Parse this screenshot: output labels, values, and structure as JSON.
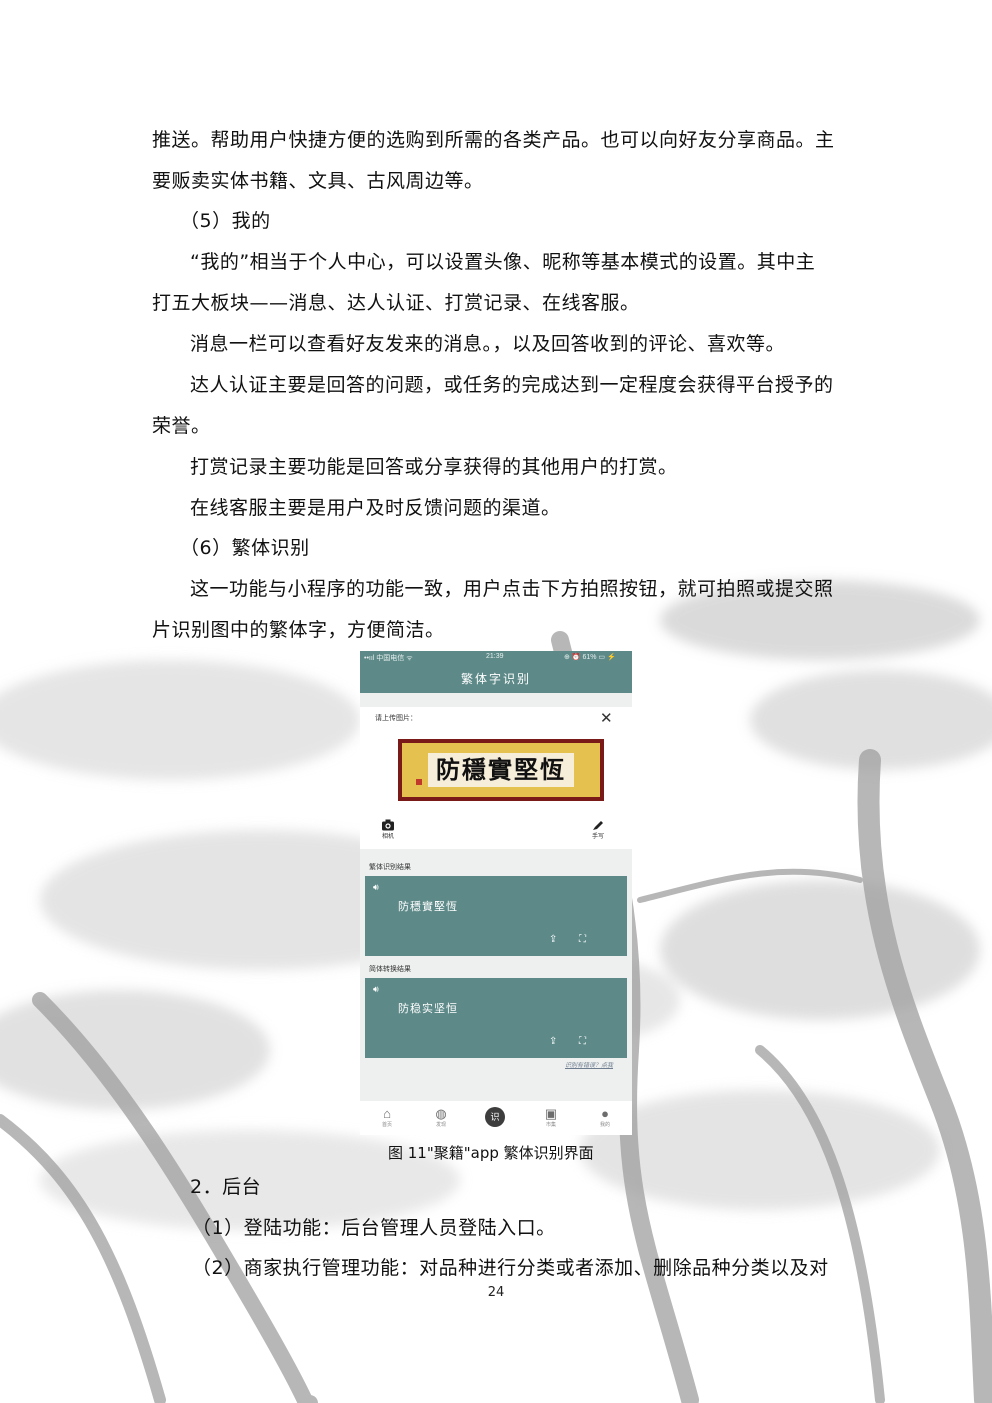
{
  "paragraphs": [
    "推送。帮助用户快捷方便的选购到所需的各类产品。也可以向好友分享商品。主",
    "要贩卖实体书籍、文具、古风周边等。",
    "（5）我的",
    "“我的”相当于个人中心，可以设置头像、昵称等基本模式的设置。其中主",
    "打五大板块——消息、达人认证、打赏记录、在线客服。",
    "消息一栏可以查看好友发来的消息。，以及回答收到的评论、喜欢等。",
    "达人认证主要是回答的问题，或任务的完成达到一定程度会获得平台授予的",
    "荣誉。",
    "打赏记录主要功能是回答或分享获得的其他用户的打赏。",
    "在线客服主要是用户及时反馈问题的渠道。",
    "（6）繁体识别",
    "这一功能与小程序的功能一致，用户点击下方拍照按钮，就可拍照或提交照",
    "片识别图中的繁体字，方便简洁。"
  ],
  "screenshot": {
    "status": {
      "carrier": "••ııl 中国电信 ᯤ",
      "time": "21:39",
      "battery": "⊕ ⏰ 61% ▭ ⚡"
    },
    "nav_title": "繁体字识别",
    "upload_label": "请上传图片：",
    "close_glyph": "✕",
    "plaque_text": "防穩實堅恆",
    "tools": {
      "camera": "相机",
      "handwrite": "手写"
    },
    "traditional_label": "繁体识别结果",
    "traditional_text": "防穩實堅恆",
    "simplified_label": "简体转换结果",
    "simplified_text": "防稳实坚恒",
    "feedback_link": "识别有错误？点我",
    "tabs": [
      "首页",
      "发现",
      "识",
      "市集",
      "我的"
    ]
  },
  "caption": "图  11\"聚籍\"app 繁体识别界面",
  "after": [
    "2．后台",
    "（1）登陆功能：后台管理人员登陆入口。",
    "（2）商家执行管理功能：对品种进行分类或者添加、删除品种分类以及对"
  ],
  "page_number": "24"
}
